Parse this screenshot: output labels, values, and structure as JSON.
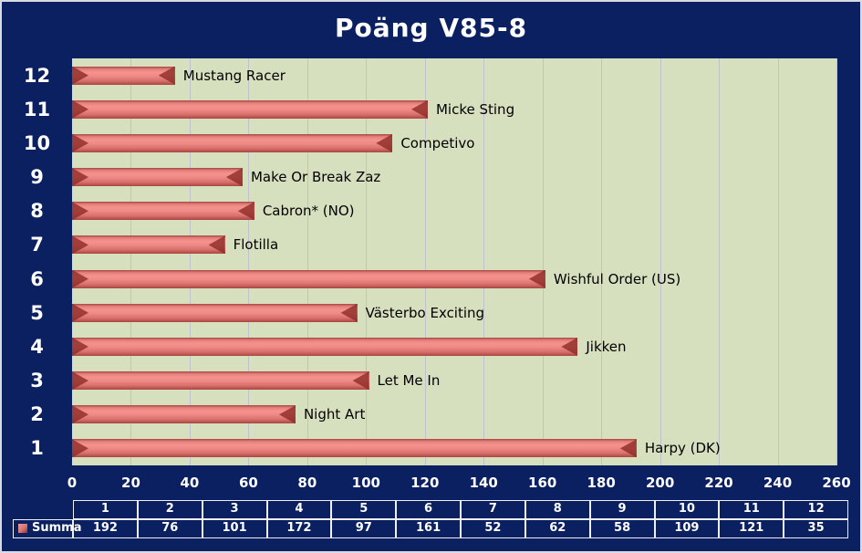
{
  "window": {
    "title": "Poäng  V85-8"
  },
  "chart_data": {
    "type": "bar",
    "orientation": "horizontal",
    "title": "Poäng  V85-8",
    "series_name": "Summa",
    "categories": [
      "12",
      "11",
      "10",
      "9",
      "8",
      "7",
      "6",
      "5",
      "4",
      "3",
      "2",
      "1"
    ],
    "bar_labels": [
      "Mustang Racer",
      "Micke Sting",
      "Competivo",
      "Make Or Break Zaz",
      "Cabron* (NO)",
      "Flotilla",
      "Wishful Order (US)",
      "Västerbo Exciting",
      "Jikken",
      "Let Me In",
      "Night Art",
      "Harpy (DK)"
    ],
    "values": [
      35,
      121,
      109,
      58,
      62,
      52,
      161,
      97,
      172,
      101,
      76,
      192
    ],
    "x_ticks": [
      0,
      20,
      40,
      60,
      80,
      100,
      120,
      140,
      160,
      180,
      200,
      220,
      240,
      260
    ],
    "xlim": [
      0,
      260
    ],
    "grid": true,
    "legend_position": "bottom-data-table",
    "colors": {
      "background": "#0a2061",
      "plot_background": "#d6e0be",
      "bar": "#c0504d",
      "gridline": "#bfc3cc",
      "axis_text": "#ffffff",
      "bar_label_text": "#000000"
    }
  },
  "data_table": {
    "row_label": "Summa",
    "columns": [
      "1",
      "2",
      "3",
      "4",
      "5",
      "6",
      "7",
      "8",
      "9",
      "10",
      "11",
      "12"
    ],
    "values": [
      "192",
      "76",
      "101",
      "172",
      "97",
      "161",
      "52",
      "62",
      "58",
      "109",
      "121",
      "35"
    ]
  }
}
